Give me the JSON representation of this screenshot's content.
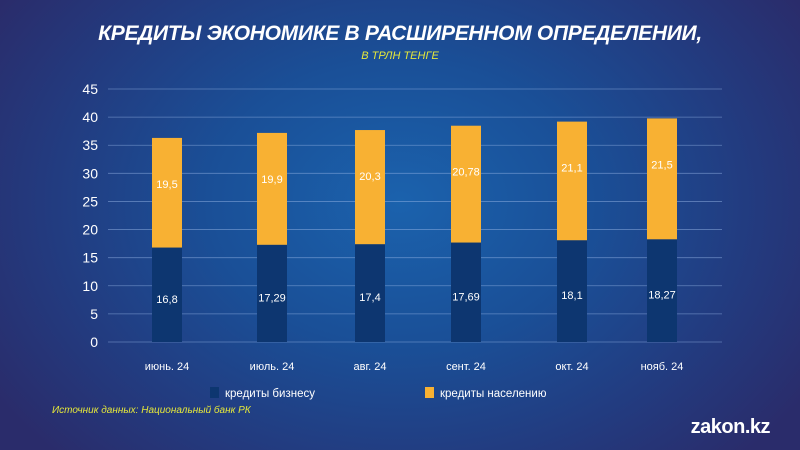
{
  "chart_data": {
    "type": "bar",
    "stacked": true,
    "title": "КРЕДИТЫ ЭКОНОМИКЕ В РАСШИРЕННОМ ОПРЕДЕЛЕНИИ,",
    "subtitle": "В ТРЛН ТЕНГЕ",
    "xlabel": "",
    "ylabel": "",
    "ylim": [
      0,
      45
    ],
    "yticks": [
      0,
      5,
      10,
      15,
      20,
      25,
      30,
      35,
      40,
      45
    ],
    "grid": true,
    "categories": [
      "июнь. 24",
      "июль. 24",
      "авг. 24",
      "сент. 24",
      "окт. 24",
      "нояб. 24"
    ],
    "series": [
      {
        "name": "кредиты бизнесу",
        "color": "#0d3670",
        "values": [
          16.8,
          17.29,
          17.4,
          17.69,
          18.1,
          18.27
        ],
        "labels": [
          "16,8",
          "17,29",
          "17,4",
          "17,69",
          "18,1",
          "18,27"
        ]
      },
      {
        "name": "кредиты населению",
        "color": "#f8b133",
        "values": [
          19.5,
          19.9,
          20.3,
          20.78,
          21.1,
          21.5
        ],
        "labels": [
          "19,5",
          "19,9",
          "20,3",
          "20,78",
          "21,1",
          "21,5"
        ]
      }
    ],
    "legend_position": "bottom"
  },
  "source": "Источник данных: Национальный банк РК",
  "brand": "zakon.kz"
}
